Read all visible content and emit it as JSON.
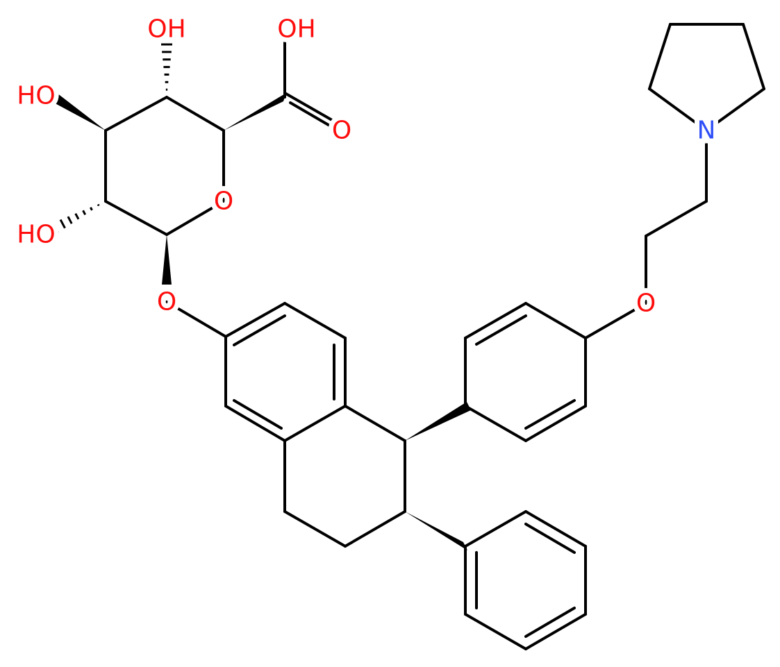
{
  "labels": [
    "HO",
    "OH",
    "OH",
    "O",
    "O",
    "HO",
    "O",
    "O",
    "N"
  ]
}
